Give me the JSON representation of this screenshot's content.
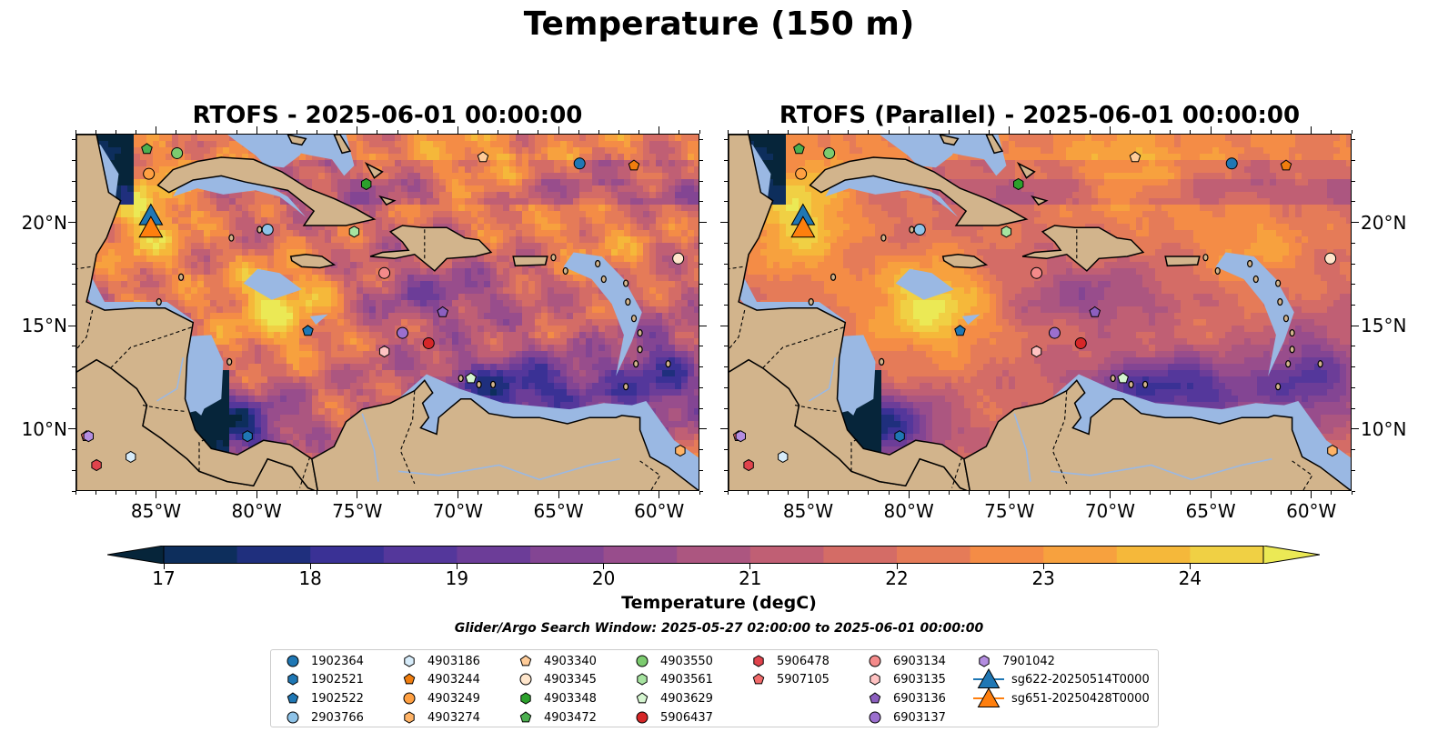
{
  "figure": {
    "title": "Temperature (150 m)",
    "search_window": "Glider/Argo Search Window: 2025-05-27 02:00:00 to 2025-06-01 00:00:00"
  },
  "panels": [
    {
      "title": "RTOFS - 2025-06-01 00:00:00",
      "variant": "standard"
    },
    {
      "title": "RTOFS (Parallel) - 2025-06-01 00:00:00",
      "variant": "parallel"
    }
  ],
  "map": {
    "lon_range": [
      -89,
      -58
    ],
    "lat_range": [
      7,
      24.3
    ],
    "lon_tick_labels": [
      "85°W",
      "80°W",
      "75°W",
      "70°W",
      "65°W",
      "60°W"
    ],
    "lat_tick_labels": [
      "20°N",
      "15°N",
      "10°N"
    ],
    "land_color": "#d2b48c",
    "shallow_color": "#9ab8e3",
    "coastline_color": "#000000"
  },
  "colorbar": {
    "label": "Temperature (degC)",
    "min": 16.5,
    "max": 24.5,
    "tick_labels": [
      "17",
      "18",
      "19",
      "20",
      "21",
      "22",
      "23",
      "24"
    ],
    "colors": [
      "#06253a",
      "#0d2e5c",
      "#1f2f7d",
      "#3a3195",
      "#54379b",
      "#6c3d98",
      "#834593",
      "#984d8c",
      "#ac5680",
      "#c05f74",
      "#d46c66",
      "#e57b58",
      "#f48c46",
      "#f7a13e",
      "#f5b83a",
      "#f0d044",
      "#ebe955"
    ]
  },
  "platforms": [
    {
      "id": "1902364",
      "marker": "circle",
      "color": "#1f77b4",
      "lon": -64,
      "lat": 22.9
    },
    {
      "id": "1902521",
      "marker": "hexagon",
      "color": "#1f77b4",
      "lon": -80.5,
      "lat": 9.7
    },
    {
      "id": "1902522",
      "marker": "pentagon",
      "color": "#1f77b4",
      "lon": -77.5,
      "lat": 14.8
    },
    {
      "id": "2903766",
      "marker": "circle",
      "color": "#8ec3e8",
      "lon": -79.5,
      "lat": 19.7
    },
    {
      "id": "4903186",
      "marker": "hexagon",
      "color": "#d7ecfa",
      "lon": -86.3,
      "lat": 8.7
    },
    {
      "id": "4903244",
      "marker": "pentagon",
      "color": "#f07d0e",
      "lon": -61.3,
      "lat": 22.8
    },
    {
      "id": "4903249",
      "marker": "circle",
      "color": "#ffa042",
      "lon": -85.4,
      "lat": 22.4
    },
    {
      "id": "4903274",
      "marker": "hexagon",
      "color": "#ffb366",
      "lon": -59,
      "lat": 9
    },
    {
      "id": "4903340",
      "marker": "pentagon",
      "color": "#ffcc99",
      "lon": -68.8,
      "lat": 23.2
    },
    {
      "id": "4903345",
      "marker": "circle",
      "color": "#ffe6cc",
      "lon": -59.1,
      "lat": 18.3
    },
    {
      "id": "4903348",
      "marker": "hexagon",
      "color": "#2ca02c",
      "lon": -74.6,
      "lat": 21.9
    },
    {
      "id": "4903472",
      "marker": "pentagon",
      "color": "#4caf50",
      "lon": -85.5,
      "lat": 23.6
    },
    {
      "id": "4903550",
      "marker": "circle",
      "color": "#7ccb6f",
      "lon": -84,
      "lat": 23.4
    },
    {
      "id": "4903561",
      "marker": "hexagon",
      "color": "#a6e3a0",
      "lon": -75.2,
      "lat": 19.6
    },
    {
      "id": "4903629",
      "marker": "pentagon",
      "color": "#d5f5d0",
      "lon": -69.4,
      "lat": 12.5
    },
    {
      "id": "5906437",
      "marker": "circle",
      "color": "#d62728",
      "lon": -71.5,
      "lat": 14.2
    },
    {
      "id": "5906478",
      "marker": "hexagon",
      "color": "#e0434c",
      "lon": -88,
      "lat": 8.3
    },
    {
      "id": "5907105",
      "marker": "pentagon",
      "color": "#f26b6b",
      "lon": -88.5,
      "lat": 9.7
    },
    {
      "id": "6903134",
      "marker": "circle",
      "color": "#f48a8a",
      "lon": -73.7,
      "lat": 17.6
    },
    {
      "id": "6903135",
      "marker": "hexagon",
      "color": "#ffc2c2",
      "lon": -73.7,
      "lat": 13.8
    },
    {
      "id": "6903136",
      "marker": "pentagon",
      "color": "#8c5fbf",
      "lon": -70.8,
      "lat": 15.7
    },
    {
      "id": "6903137",
      "marker": "circle",
      "color": "#9b6fce",
      "lon": -72.8,
      "lat": 14.7
    },
    {
      "id": "7901042",
      "marker": "hexagon",
      "color": "#b48de0",
      "lon": -88.4,
      "lat": 9.7
    },
    {
      "id": "sg622-20250514T0000",
      "marker": "triangle",
      "color": "#1f77b4",
      "line": true,
      "lon": -85.3,
      "lat": 20.3
    },
    {
      "id": "sg651-20250428T0000",
      "marker": "triangle",
      "color": "#ff7f0e",
      "line": true,
      "lon": -85.3,
      "lat": 19.7
    }
  ]
}
